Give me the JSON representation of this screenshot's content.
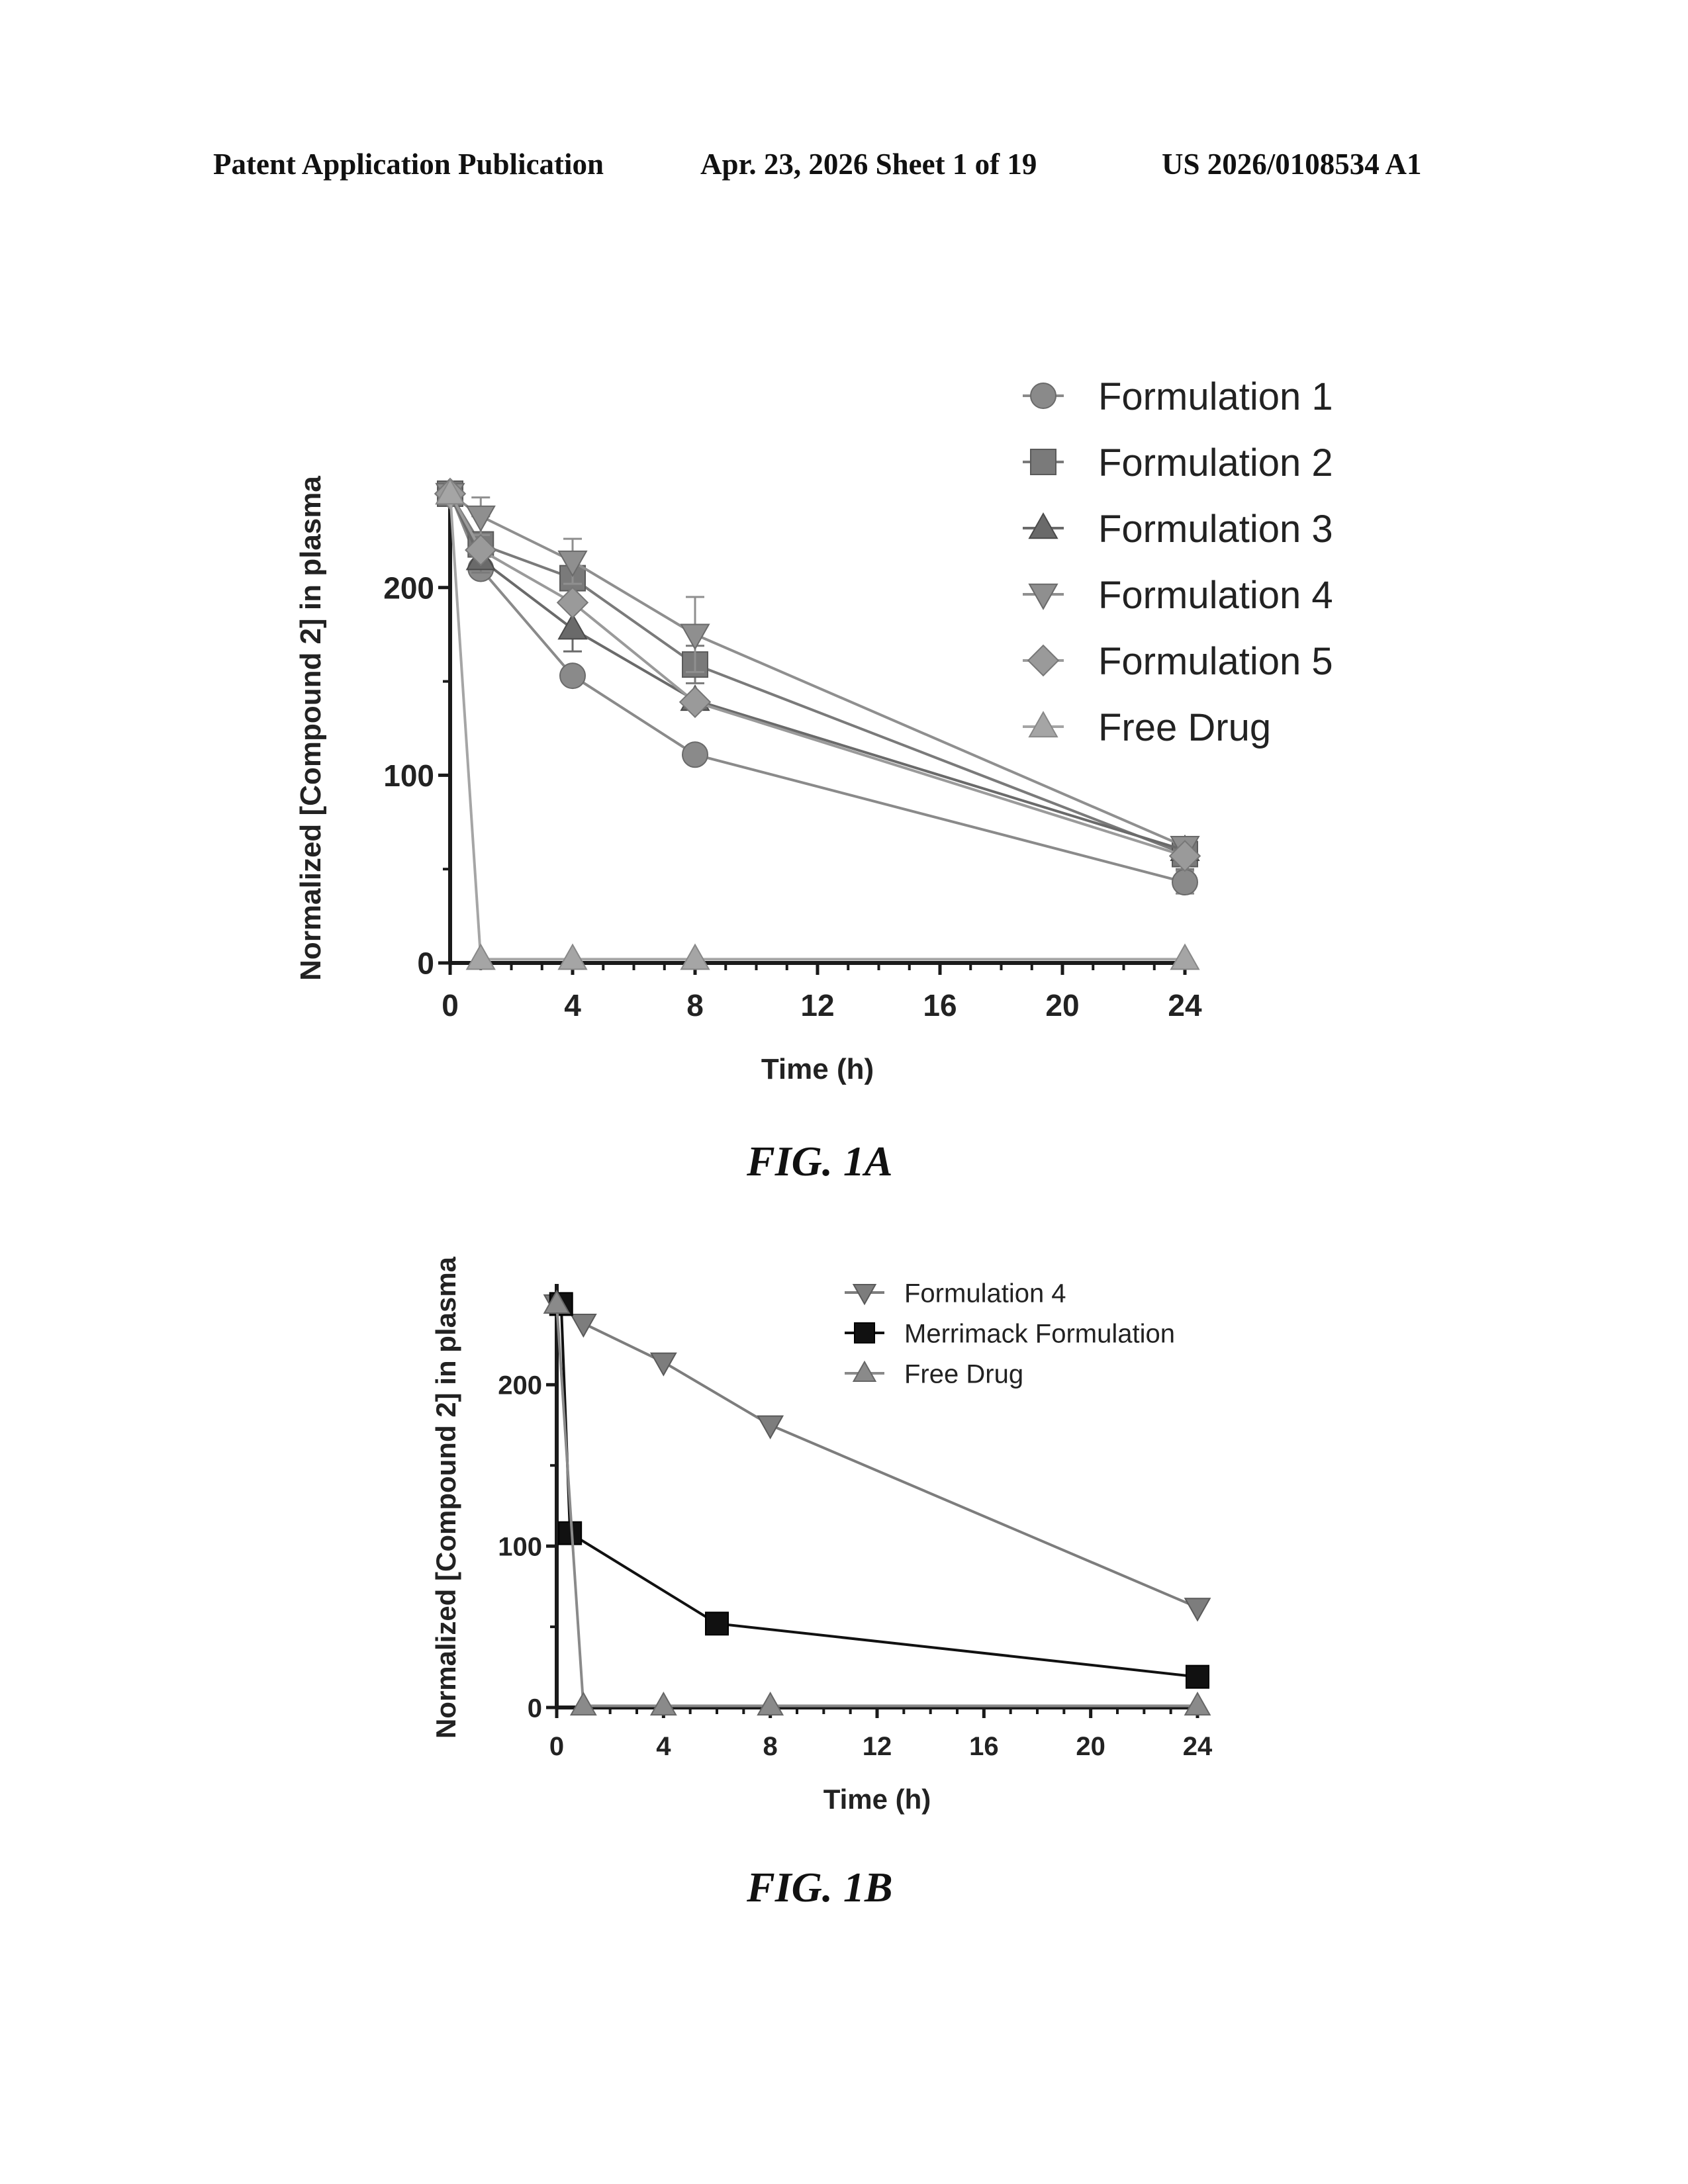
{
  "header": {
    "left": "Patent Application Publication",
    "middle": "Apr. 23, 2026  Sheet 1 of 19",
    "right": "US 2026/0108534 A1"
  },
  "captions": {
    "fig_a": "FIG. 1A",
    "fig_b": "FIG. 1B"
  },
  "chart_data": [
    {
      "type": "line",
      "title": "",
      "xlabel": "Time (h)",
      "ylabel": "Normalized [Compound 2] in plasma",
      "xlim": [
        0,
        24
      ],
      "ylim": [
        0,
        250
      ],
      "x_ticks": [
        0,
        4,
        8,
        12,
        16,
        20,
        24
      ],
      "y_ticks": [
        0,
        100,
        200
      ],
      "grid": false,
      "legend_position": "top-right",
      "series": [
        {
          "name": "Formulation 1",
          "marker": "circle",
          "x": [
            0,
            1,
            4,
            8,
            24
          ],
          "y": [
            250,
            210,
            153,
            111,
            43
          ],
          "err": [
            0,
            0,
            0,
            0,
            6
          ]
        },
        {
          "name": "Formulation 2",
          "marker": "square",
          "x": [
            0,
            1,
            4,
            8,
            24
          ],
          "y": [
            250,
            223,
            205,
            159,
            58
          ],
          "err": [
            0,
            15,
            10,
            10,
            8
          ]
        },
        {
          "name": "Formulation 3",
          "marker": "triangle-up",
          "x": [
            0,
            1,
            4,
            8,
            24
          ],
          "y": [
            250,
            215,
            178,
            140,
            60
          ],
          "err": [
            0,
            0,
            12,
            0,
            0
          ]
        },
        {
          "name": "Formulation 4",
          "marker": "triangle-down",
          "x": [
            0,
            1,
            4,
            8,
            24
          ],
          "y": [
            250,
            238,
            214,
            175,
            62
          ],
          "err": [
            0,
            10,
            12,
            20,
            0
          ]
        },
        {
          "name": "Formulation 5",
          "marker": "diamond",
          "x": [
            0,
            1,
            4,
            8,
            24
          ],
          "y": [
            250,
            220,
            192,
            139,
            57
          ],
          "err": [
            0,
            0,
            0,
            0,
            0
          ]
        },
        {
          "name": "Free Drug",
          "marker": "triangle-up",
          "x": [
            0,
            1,
            4,
            8,
            24
          ],
          "y": [
            250,
            2,
            2,
            2,
            2
          ],
          "err": [
            0,
            0,
            0,
            0,
            0
          ]
        }
      ]
    },
    {
      "type": "line",
      "title": "",
      "xlabel": "Time (h)",
      "ylabel": "Normalized [Compound 2] in plasma",
      "xlim": [
        0,
        24
      ],
      "ylim": [
        0,
        260
      ],
      "x_ticks": [
        0,
        4,
        8,
        12,
        16,
        20,
        24
      ],
      "y_ticks": [
        0,
        100,
        200
      ],
      "grid": false,
      "legend_position": "top-right",
      "series": [
        {
          "name": "Formulation 4",
          "marker": "triangle-down",
          "x": [
            0,
            1,
            4,
            8,
            24
          ],
          "y": [
            250,
            238,
            214,
            175,
            62
          ]
        },
        {
          "name": "Merrimack Formulation",
          "marker": "square",
          "x": [
            0.167,
            0.5,
            6,
            24
          ],
          "y": [
            250,
            108,
            52,
            19
          ]
        },
        {
          "name": "Free Drug",
          "marker": "triangle-up",
          "x": [
            0,
            1,
            4,
            8,
            24
          ],
          "y": [
            250,
            1,
            1,
            1,
            1
          ]
        }
      ]
    }
  ]
}
